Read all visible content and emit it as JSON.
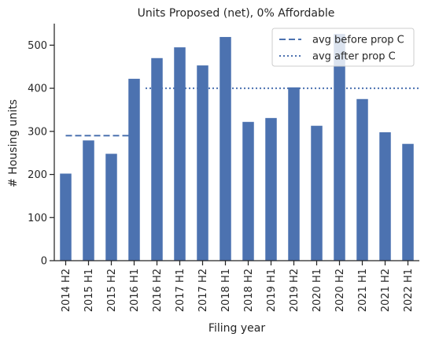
{
  "chart_data": {
    "type": "bar",
    "title": "Units Proposed (net), 0% Affordable",
    "xlabel": "Filing year",
    "ylabel": "# Housing units",
    "categories": [
      "2014 H2",
      "2015 H1",
      "2015 H2",
      "2016 H1",
      "2016 H2",
      "2017 H1",
      "2017 H2",
      "2018 H1",
      "2018 H2",
      "2019 H1",
      "2019 H2",
      "2020 H1",
      "2020 H2",
      "2021 H1",
      "2021 H2",
      "2022 H1"
    ],
    "values": [
      202,
      279,
      248,
      422,
      470,
      495,
      453,
      519,
      322,
      331,
      402,
      313,
      526,
      375,
      298,
      271
    ],
    "yticks": [
      0,
      100,
      200,
      300,
      400,
      500
    ],
    "ylim": [
      0,
      550
    ],
    "bar_color": "#4c72b0",
    "reference_lines": [
      {
        "name": "avg before prop C",
        "style": "dashed",
        "y": 290,
        "x_start": "2014 H2",
        "x_end": "2016 H1"
      },
      {
        "name": "avg after prop C",
        "style": "dotted",
        "y": 400,
        "x_start": "2016 H2",
        "x_end": "2022 H1"
      }
    ],
    "legend_position": "top-right",
    "grid": false
  }
}
